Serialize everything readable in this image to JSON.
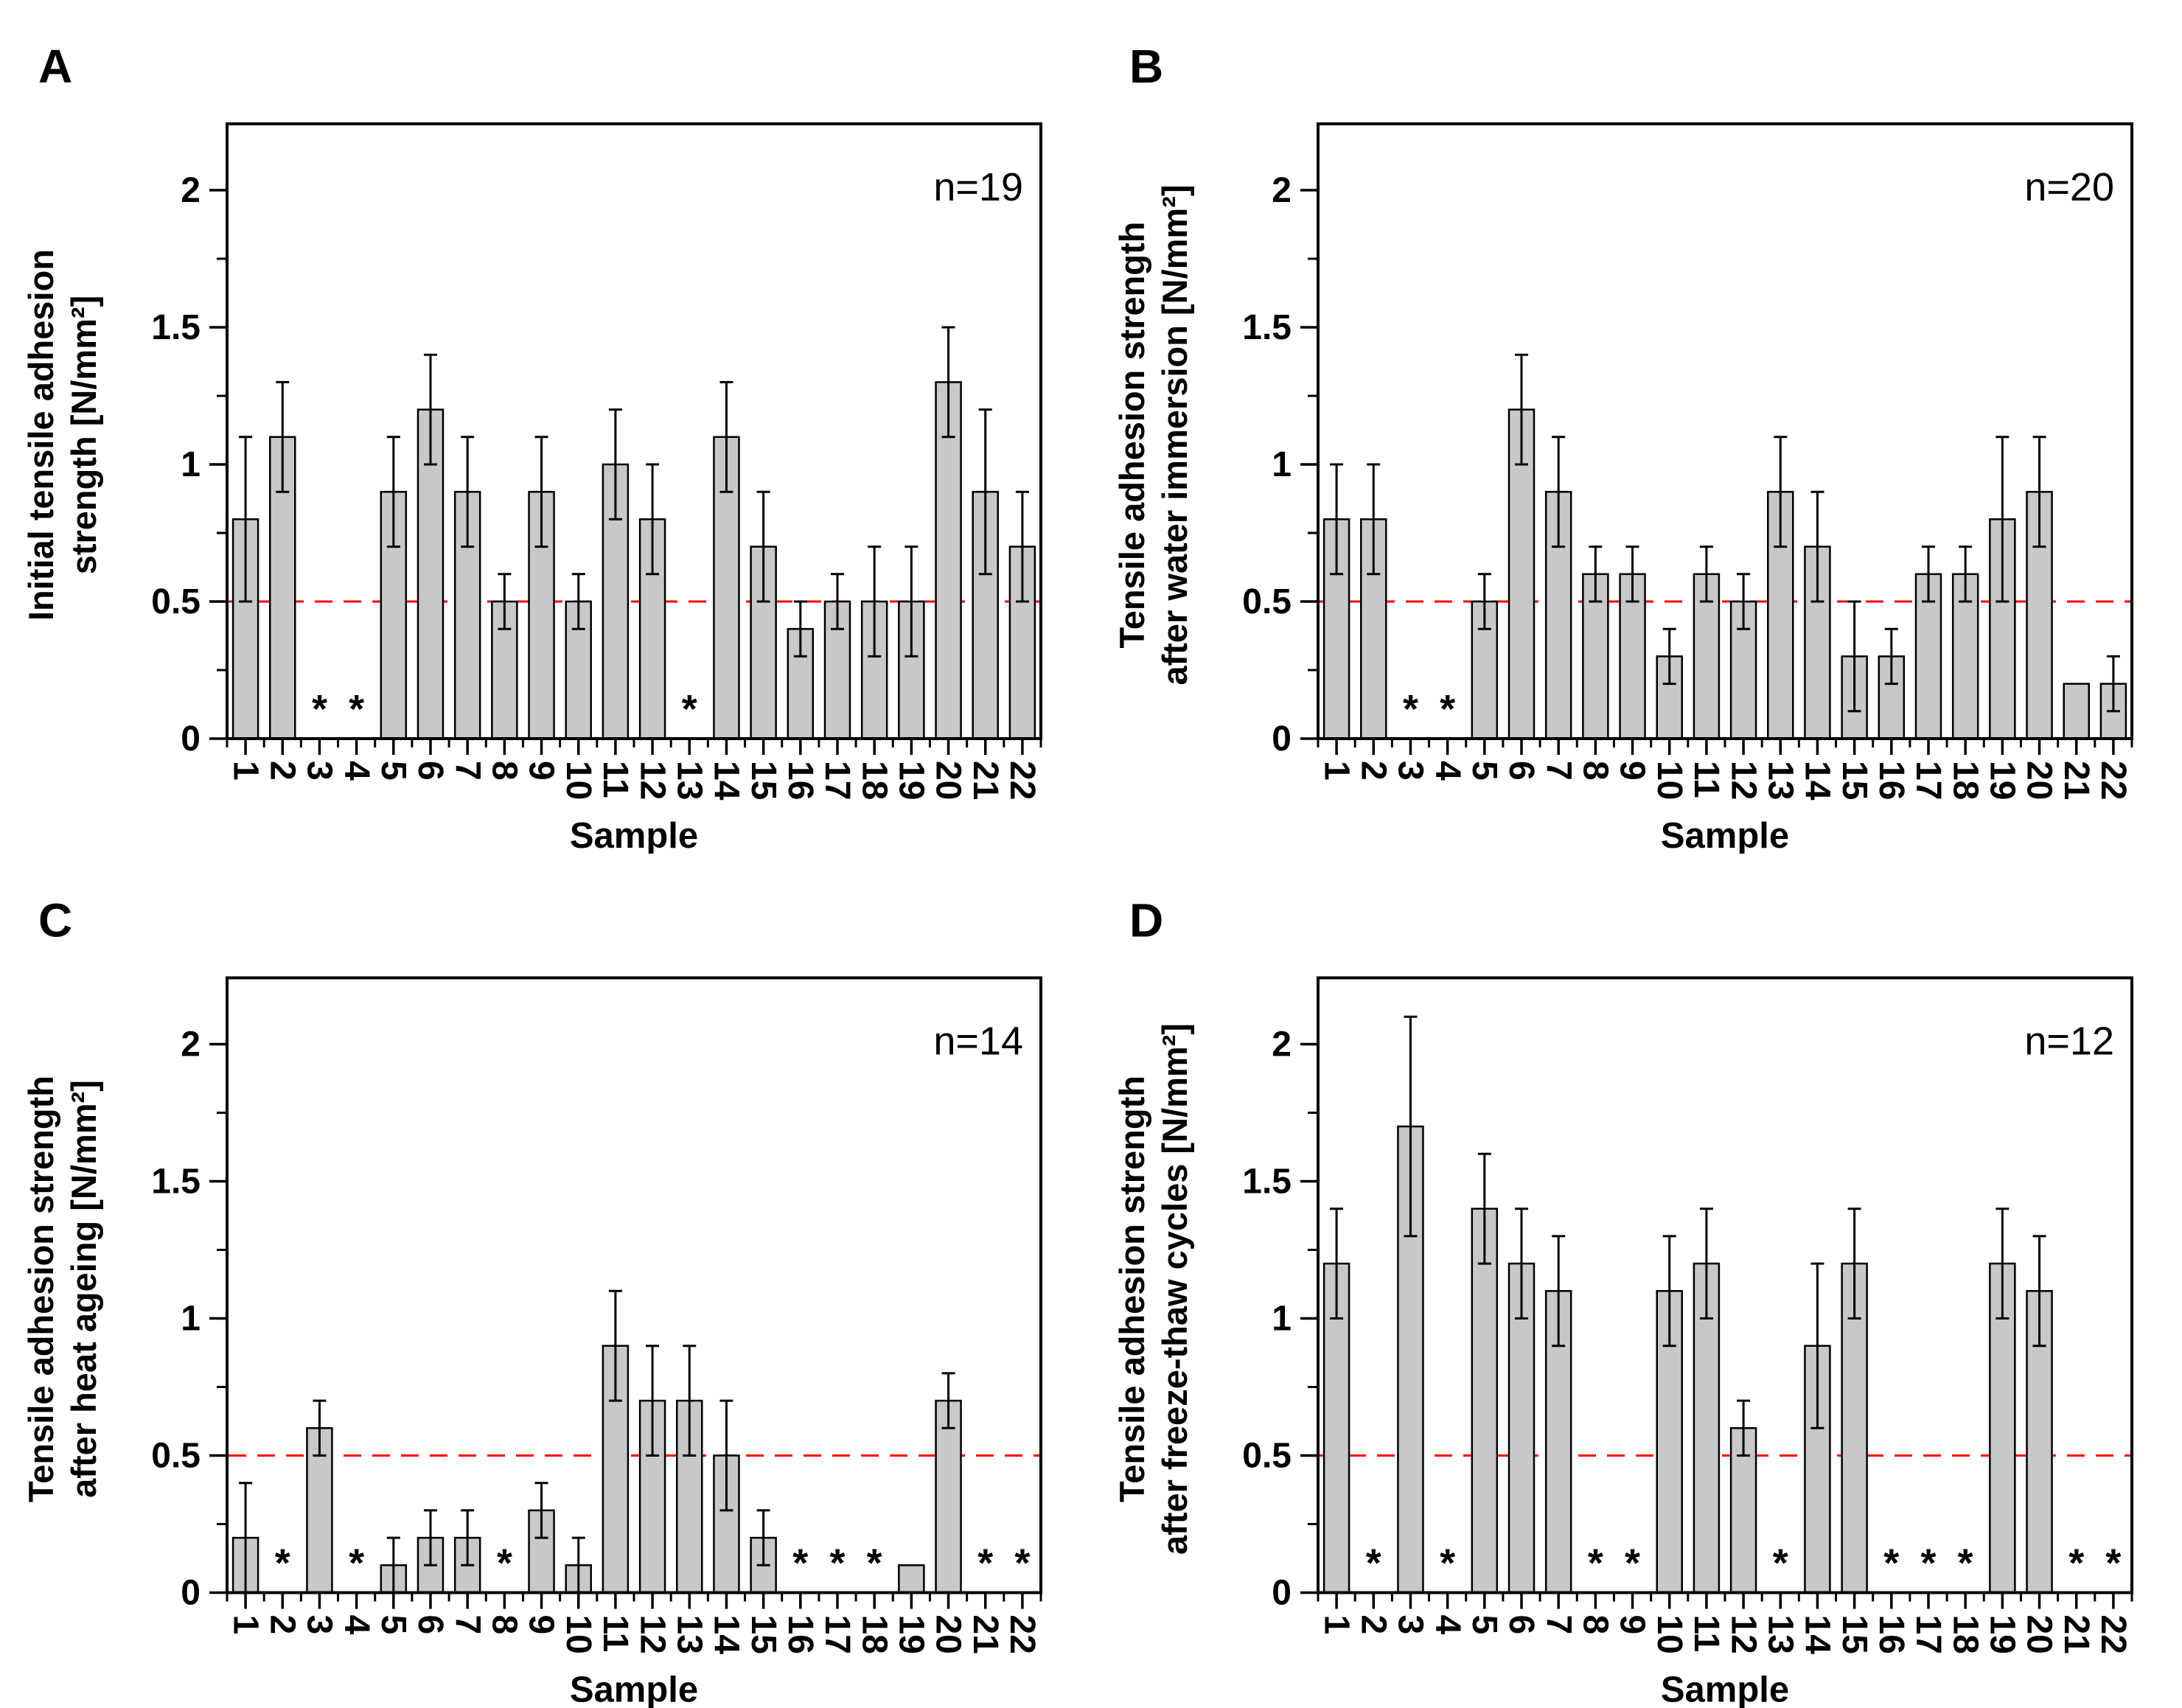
{
  "figure": {
    "background": "#ffffff",
    "bar_fill": "#c8c8c8",
    "bar_stroke": "#000000",
    "axis_color": "#000000",
    "threshold_color": "#ff0000"
  },
  "chart_data": [
    {
      "type": "bar",
      "panel_letter": "A",
      "n_label": "n=19",
      "ylabel_line1": "Initial tensile adhesion",
      "ylabel_line2": "strength [N/mm²]",
      "xlabel": "Sample",
      "threshold": 0.5,
      "ylim": [
        0,
        2.24
      ],
      "yticks": [
        0,
        0.5,
        1,
        1.5,
        2
      ],
      "ytick_labels": [
        "0",
        "0.5",
        "1",
        "1.5",
        "2"
      ],
      "minor_yticks": [
        0.25,
        0.75,
        1.25,
        1.75,
        2.25
      ],
      "missing_marker": "*",
      "categories": [
        "1",
        "2",
        "3",
        "4",
        "5",
        "6",
        "7",
        "8",
        "9",
        "10",
        "11",
        "12",
        "13",
        "14",
        "15",
        "16",
        "17",
        "18",
        "19",
        "20",
        "21",
        "22"
      ],
      "values": [
        0.8,
        1.1,
        null,
        null,
        0.9,
        1.2,
        0.9,
        0.5,
        0.9,
        0.5,
        1.0,
        0.8,
        null,
        1.1,
        0.7,
        0.4,
        0.5,
        0.5,
        0.5,
        1.3,
        0.9,
        0.7
      ],
      "err_low": [
        0.3,
        0.2,
        null,
        null,
        0.2,
        0.2,
        0.2,
        0.1,
        0.2,
        0.1,
        0.2,
        0.2,
        null,
        0.2,
        0.2,
        0.1,
        0.1,
        0.2,
        0.2,
        0.2,
        0.3,
        0.2
      ],
      "err_high": [
        0.3,
        0.2,
        null,
        null,
        0.2,
        0.2,
        0.2,
        0.1,
        0.2,
        0.1,
        0.2,
        0.2,
        null,
        0.2,
        0.2,
        0.1,
        0.1,
        0.2,
        0.2,
        0.2,
        0.3,
        0.2
      ]
    },
    {
      "type": "bar",
      "panel_letter": "B",
      "n_label": "n=20",
      "ylabel_line1": "Tensile adhesion strength",
      "ylabel_line2": "after water immersion [N/mm²]",
      "xlabel": "Sample",
      "threshold": 0.5,
      "ylim": [
        0,
        2.24
      ],
      "yticks": [
        0,
        0.5,
        1,
        1.5,
        2
      ],
      "ytick_labels": [
        "0",
        "0.5",
        "1",
        "1.5",
        "2"
      ],
      "minor_yticks": [
        0.25,
        0.75,
        1.25,
        1.75,
        2.25
      ],
      "missing_marker": "*",
      "categories": [
        "1",
        "2",
        "3",
        "4",
        "5",
        "6",
        "7",
        "8",
        "9",
        "10",
        "11",
        "12",
        "13",
        "14",
        "15",
        "16",
        "17",
        "18",
        "19",
        "20",
        "21",
        "22"
      ],
      "values": [
        0.8,
        0.8,
        null,
        null,
        0.5,
        1.2,
        0.9,
        0.6,
        0.6,
        0.3,
        0.6,
        0.5,
        0.9,
        0.7,
        0.3,
        0.3,
        0.6,
        0.6,
        0.8,
        0.9,
        0.2,
        0.2
      ],
      "err_low": [
        0.2,
        0.2,
        null,
        null,
        0.1,
        0.2,
        0.2,
        0.1,
        0.1,
        0.1,
        0.1,
        0.1,
        0.2,
        0.2,
        0.2,
        0.1,
        0.1,
        0.1,
        0.3,
        0.2,
        null,
        0.1
      ],
      "err_high": [
        0.2,
        0.2,
        null,
        null,
        0.1,
        0.2,
        0.2,
        0.1,
        0.1,
        0.1,
        0.1,
        0.1,
        0.2,
        0.2,
        0.2,
        0.1,
        0.1,
        0.1,
        0.3,
        0.2,
        null,
        0.1
      ]
    },
    {
      "type": "bar",
      "panel_letter": "C",
      "n_label": "n=14",
      "ylabel_line1": "Tensile adhesion strength",
      "ylabel_line2": "after heat ageing [N/mm²]",
      "xlabel": "Sample",
      "threshold": 0.5,
      "ylim": [
        0,
        2.24
      ],
      "yticks": [
        0,
        0.5,
        1,
        1.5,
        2
      ],
      "ytick_labels": [
        "0",
        "0.5",
        "1",
        "1.5",
        "2"
      ],
      "minor_yticks": [
        0.25,
        0.75,
        1.25,
        1.75,
        2.25
      ],
      "missing_marker": "*",
      "categories": [
        "1",
        "2",
        "3",
        "4",
        "5",
        "6",
        "7",
        "8",
        "9",
        "10",
        "11",
        "12",
        "13",
        "14",
        "15",
        "16",
        "17",
        "18",
        "19",
        "20",
        "21",
        "22"
      ],
      "values": [
        0.2,
        null,
        0.6,
        null,
        0.1,
        0.2,
        0.2,
        null,
        0.3,
        0.1,
        0.9,
        0.7,
        0.7,
        0.5,
        0.2,
        null,
        null,
        null,
        0.1,
        0.7,
        null,
        null
      ],
      "err_low": [
        0.2,
        null,
        0.1,
        null,
        0.1,
        0.1,
        0.1,
        null,
        0.1,
        0.1,
        0.2,
        0.2,
        0.2,
        0.2,
        0.1,
        null,
        null,
        null,
        null,
        0.1,
        null,
        null
      ],
      "err_high": [
        0.2,
        null,
        0.1,
        null,
        0.1,
        0.1,
        0.1,
        null,
        0.1,
        0.1,
        0.2,
        0.2,
        0.2,
        0.2,
        0.1,
        null,
        null,
        null,
        null,
        0.1,
        null,
        null
      ]
    },
    {
      "type": "bar",
      "panel_letter": "D",
      "n_label": "n=12",
      "ylabel_line1": "Tensile adhesion strength",
      "ylabel_line2": "after freeze-thaw cycles [N/mm²]",
      "xlabel": "Sample",
      "threshold": 0.5,
      "ylim": [
        0,
        2.24
      ],
      "yticks": [
        0,
        0.5,
        1,
        1.5,
        2
      ],
      "ytick_labels": [
        "0",
        "0.5",
        "1",
        "1.5",
        "2"
      ],
      "minor_yticks": [
        0.25,
        0.75,
        1.25,
        1.75,
        2.25
      ],
      "missing_marker": "*",
      "categories": [
        "1",
        "2",
        "3",
        "4",
        "5",
        "6",
        "7",
        "8",
        "9",
        "10",
        "11",
        "12",
        "13",
        "14",
        "15",
        "16",
        "17",
        "18",
        "19",
        "20",
        "21",
        "22"
      ],
      "values": [
        1.2,
        null,
        1.7,
        null,
        1.4,
        1.2,
        1.1,
        null,
        null,
        1.1,
        1.2,
        0.6,
        null,
        0.9,
        1.2,
        null,
        null,
        null,
        1.2,
        1.1,
        null,
        null
      ],
      "err_low": [
        0.2,
        null,
        0.4,
        null,
        0.2,
        0.2,
        0.2,
        null,
        null,
        0.2,
        0.2,
        0.1,
        null,
        0.3,
        0.2,
        null,
        null,
        null,
        0.2,
        0.2,
        null,
        null
      ],
      "err_high": [
        0.2,
        null,
        0.4,
        null,
        0.2,
        0.2,
        0.2,
        null,
        null,
        0.2,
        0.2,
        0.1,
        null,
        0.3,
        0.2,
        null,
        null,
        null,
        0.2,
        0.2,
        null,
        null
      ]
    }
  ]
}
